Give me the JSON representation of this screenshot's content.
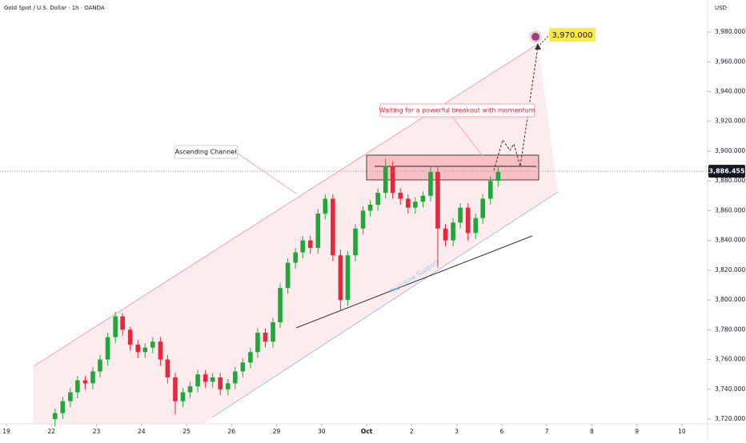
{
  "chart_data": {
    "type": "candlestick",
    "title": "Gold Spot / U.S. Dollar · 1h · OANDA",
    "currency": "USD",
    "xlim": [
      -0.142,
      15.5
    ],
    "xticks": [
      {
        "value": 0,
        "label": "19"
      },
      {
        "value": 1,
        "label": "22"
      },
      {
        "value": 2,
        "label": "23"
      },
      {
        "value": 3,
        "label": "24"
      },
      {
        "value": 4,
        "label": "25"
      },
      {
        "value": 5,
        "label": "26"
      },
      {
        "value": 6,
        "label": "29"
      },
      {
        "value": 7,
        "label": "30"
      },
      {
        "value": 8,
        "label": "Oct"
      },
      {
        "value": 9,
        "label": "2"
      },
      {
        "value": 10,
        "label": "3"
      },
      {
        "value": 11,
        "label": "6"
      },
      {
        "value": 12,
        "label": "7"
      },
      {
        "value": 13,
        "label": "8"
      },
      {
        "value": 14,
        "label": "9"
      },
      {
        "value": 15,
        "label": "10"
      }
    ],
    "ylim": [
      3716.8,
      4001.5
    ],
    "yticks": [
      {
        "value": 3720,
        "label": "3,720.000"
      },
      {
        "value": 3740,
        "label": "3,740.000"
      },
      {
        "value": 3760,
        "label": "3,760.000"
      },
      {
        "value": 3780,
        "label": "3,780.000"
      },
      {
        "value": 3800,
        "label": "3,800.000"
      },
      {
        "value": 3820,
        "label": "3,820.000"
      },
      {
        "value": 3840,
        "label": "3,840.000"
      },
      {
        "value": 3860,
        "label": "3,860.000"
      },
      {
        "value": 3880,
        "label": "3,880.000"
      },
      {
        "value": 3900,
        "label": "3,900.000"
      },
      {
        "value": 3920,
        "label": "3,920.000"
      },
      {
        "value": 3940,
        "label": "3,940.000"
      },
      {
        "value": 3960,
        "label": "3,960.000"
      },
      {
        "value": 3980,
        "label": "3,980.000"
      }
    ],
    "up_color": "#1fa83a",
    "down_color": "#e5283c",
    "candles": {
      "x": [
        1.08,
        1.25,
        1.42,
        1.58,
        1.75,
        1.92,
        2.08,
        2.25,
        2.42,
        2.58,
        2.75,
        2.92,
        3.08,
        3.25,
        3.42,
        3.58,
        3.75,
        3.92,
        4.08,
        4.25,
        4.42,
        4.58,
        4.75,
        4.92,
        5.08,
        5.25,
        5.42,
        5.58,
        5.75,
        5.92,
        6.08,
        6.25,
        6.42,
        6.58,
        6.75,
        6.92,
        7.08,
        7.25,
        7.42,
        7.58,
        7.75,
        7.92,
        8.08,
        8.25,
        8.42,
        8.58,
        8.75,
        8.92,
        9.08,
        9.25,
        9.42,
        9.58,
        9.75,
        9.92,
        10.08,
        10.25,
        10.42,
        10.58,
        10.75,
        10.92
      ],
      "open": [
        3720,
        3724,
        3732,
        3738,
        3746,
        3744,
        3752,
        3760,
        3775,
        3789,
        3780,
        3770,
        3765,
        3768,
        3772,
        3760,
        3748,
        3732,
        3738,
        3742,
        3750,
        3745,
        3748,
        3740,
        3744,
        3752,
        3758,
        3765,
        3778,
        3772,
        3785,
        3808,
        3825,
        3832,
        3840,
        3835,
        3858,
        3868,
        3830,
        3800,
        3830,
        3848,
        3860,
        3864,
        3872,
        3890,
        3872,
        3868,
        3862,
        3866,
        3870,
        3886,
        3848,
        3840,
        3852,
        3862,
        3845,
        3855,
        3868,
        3880
      ],
      "high": [
        3727,
        3735,
        3741,
        3749,
        3749,
        3755,
        3763,
        3778,
        3792,
        3791,
        3782,
        3773,
        3771,
        3775,
        3775,
        3763,
        3751,
        3741,
        3745,
        3753,
        3753,
        3751,
        3751,
        3747,
        3755,
        3761,
        3768,
        3781,
        3781,
        3788,
        3811,
        3828,
        3835,
        3843,
        3843,
        3861,
        3871,
        3871,
        3834,
        3833,
        3851,
        3863,
        3867,
        3875,
        3895,
        3893,
        3875,
        3871,
        3869,
        3873,
        3890,
        3889,
        3851,
        3855,
        3865,
        3865,
        3858,
        3871,
        3883,
        3889
      ],
      "low": [
        3715,
        3720,
        3728,
        3734,
        3740,
        3740,
        3748,
        3756,
        3771,
        3776,
        3766,
        3761,
        3761,
        3764,
        3756,
        3744,
        3723,
        3728,
        3734,
        3738,
        3741,
        3741,
        3736,
        3736,
        3740,
        3748,
        3754,
        3761,
        3768,
        3768,
        3781,
        3804,
        3821,
        3828,
        3831,
        3831,
        3854,
        3826,
        3793,
        3796,
        3826,
        3844,
        3856,
        3860,
        3868,
        3868,
        3864,
        3858,
        3858,
        3862,
        3866,
        3822,
        3836,
        3836,
        3848,
        3840,
        3841,
        3851,
        3864,
        3876
      ],
      "close": [
        3724,
        3732,
        3738,
        3746,
        3744,
        3752,
        3760,
        3775,
        3789,
        3780,
        3770,
        3765,
        3768,
        3772,
        3760,
        3748,
        3732,
        3738,
        3742,
        3750,
        3745,
        3748,
        3740,
        3744,
        3752,
        3758,
        3765,
        3778,
        3772,
        3785,
        3808,
        3825,
        3832,
        3840,
        3835,
        3858,
        3868,
        3830,
        3800,
        3830,
        3848,
        3860,
        3864,
        3872,
        3890,
        3872,
        3868,
        3862,
        3866,
        3870,
        3886,
        3848,
        3840,
        3852,
        3862,
        3845,
        3855,
        3868,
        3880,
        3886
      ]
    },
    "last_price": {
      "value": 3886.455,
      "label": "3,886.455"
    },
    "target": {
      "value": 3970,
      "label": "3,970.000"
    },
    "annotations": [
      "Ascending Channel",
      "Waiting for a powerful breakout with momentum",
      "Trendline Support"
    ]
  }
}
